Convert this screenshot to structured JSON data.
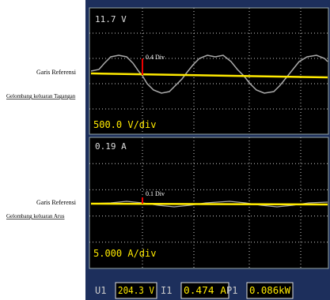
{
  "top_panel": {
    "scale_top": "11.7 V",
    "marker_label": "0.4 Div",
    "reference_label": "Garis Referensi",
    "wave_label": "Gelombang keluaran Tagangan",
    "div_label": "500.0 V/div"
  },
  "bottom_panel": {
    "scale_top": "0.19 A",
    "marker_label": "0.1 Div",
    "reference_label": "Garis Referensi",
    "wave_label": "Gelombang keluaran Arus",
    "div_label": "5.000 A/div"
  },
  "readouts": [
    {
      "name": "U1",
      "value": "204.3 V"
    },
    {
      "name": "I1",
      "value": "0.474 A"
    },
    {
      "name": "P1",
      "value": "0.086kW"
    }
  ]
}
